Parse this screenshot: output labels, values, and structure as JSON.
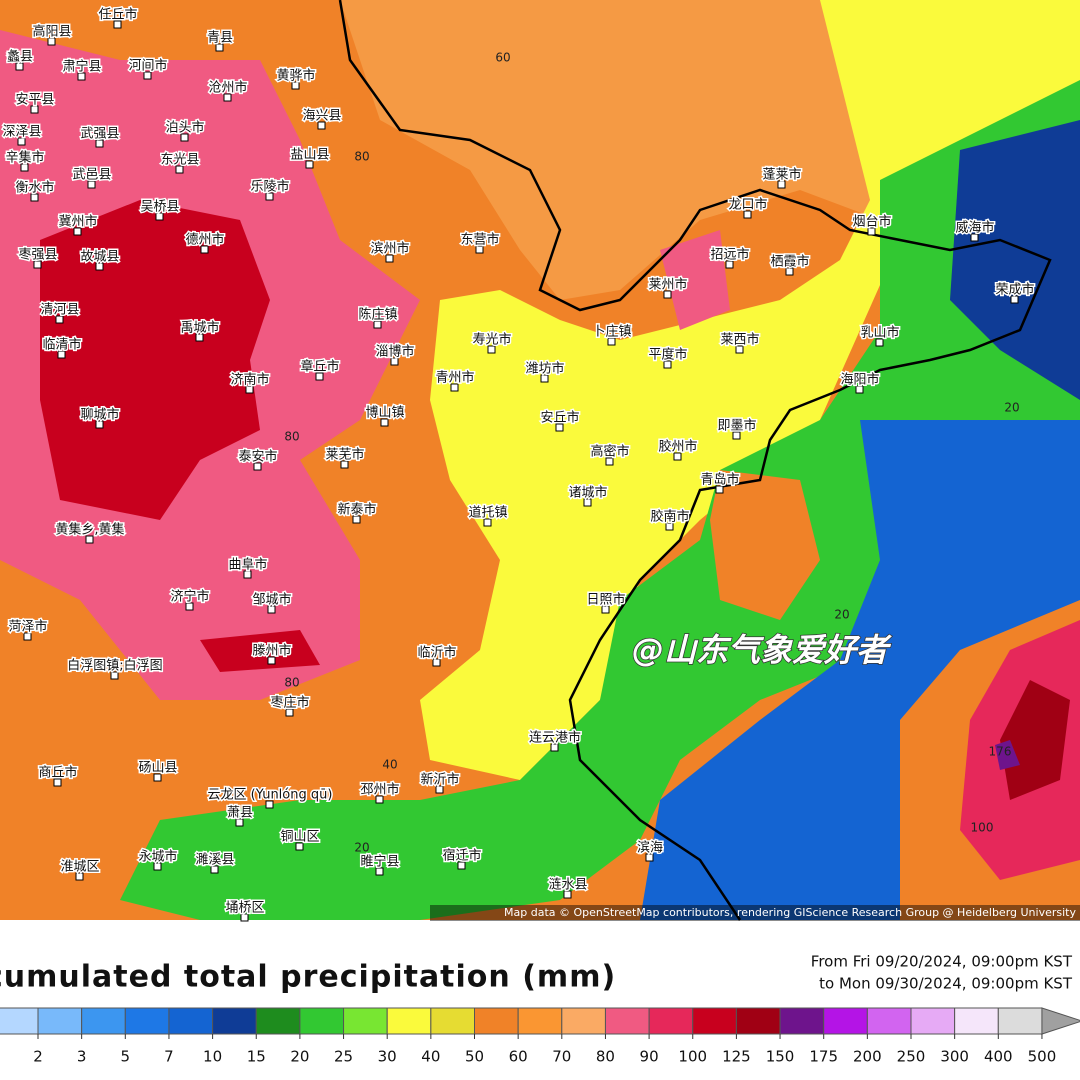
{
  "map": {
    "places": [
      "任丘市",
      "高阳县",
      "青县",
      "蠡县",
      "肃宁县",
      "河间市",
      "黄骅市",
      "沧州市",
      "安平县",
      "海兴县",
      "深泽县",
      "武强县",
      "泊头市",
      "盐山县",
      "辛集市",
      "东光县",
      "乐陵市",
      "衡水市",
      "武邑县",
      "吴桥县",
      "冀州市",
      "德州市",
      "枣强县",
      "故城县",
      "滨州市",
      "东营市",
      "清河县",
      "禹城市",
      "陈庄镇",
      "临清市",
      "淄博市",
      "济南市",
      "寿光市",
      "潍坊市",
      "青州市",
      "章丘市",
      "博山镇",
      "聊城市",
      "莱芜市",
      "泰安市",
      "安丘市",
      "高密市",
      "胶州市",
      "即墨市",
      "青岛市",
      "诸城市",
      "道托镇",
      "新泰市",
      "胶南市",
      "日照市",
      "黄集乡,黄集",
      "曲阜市",
      "济宁市",
      "邹城市",
      "菏泽市",
      "临沂市",
      "滕州市",
      "白浮图镇;白浮图",
      "枣庄市",
      "连云港市",
      "商丘市",
      "砀山县",
      "新沂市",
      "邳州市",
      "云龙区 (Yunlóng qū)",
      "萧县",
      "铜山区",
      "睢宁县",
      "宿迁市",
      "永城市",
      "濉溪县",
      "滨海",
      "涟水县",
      "埇桥区",
      "淮城区",
      "蓬莱市",
      "龙口市",
      "烟台市",
      "威海市",
      "招远市",
      "栖霞市",
      "荣成市",
      "莱州市",
      "乳山市",
      "海阳市",
      "平度市",
      "莱西市",
      "卜庄镇"
    ],
    "contour_labels": [
      "60",
      "80",
      "80",
      "80",
      "40",
      "20",
      "20",
      "20",
      "176",
      "100"
    ],
    "watermark": "@山东气象爱好者",
    "attribution": "Map data © OpenStreetMap contributors, rendering GIScience Research Group @ Heidelberg University"
  },
  "legend": {
    "title": "Accumulated total precipitation (mm)",
    "period_from": "From Fri 09/20/2024, 09:00pm KST",
    "period_to": "to Mon 09/30/2024, 09:00pm KST",
    "ticks": [
      2,
      3,
      5,
      7,
      10,
      15,
      20,
      25,
      30,
      40,
      50,
      60,
      70,
      80,
      90,
      100,
      125,
      150,
      175,
      200,
      250,
      300,
      400,
      500
    ],
    "colors": [
      "#b4d7ff",
      "#78b9fa",
      "#3c96f0",
      "#1e78e6",
      "#1464d2",
      "#0f3c96",
      "#1e8c1e",
      "#32c832",
      "#78e632",
      "#fafa3c",
      "#e6dc32",
      "#f08228",
      "#fa9632",
      "#faaa64",
      "#f05a82",
      "#e6285a",
      "#c8001e",
      "#a00014",
      "#6e148c",
      "#b414e6",
      "#d264f0",
      "#e6aaf5",
      "#f5e6fa",
      "#dcdcdc",
      "#a0a0a0"
    ]
  }
}
